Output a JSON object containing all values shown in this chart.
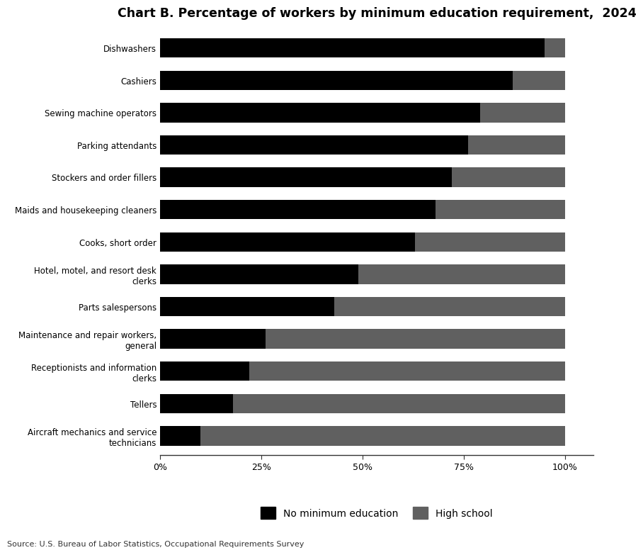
{
  "title": "Chart B. Percentage of workers by minimum education requirement,  2024",
  "categories": [
    "Aircraft mechanics and service\ntechnicians",
    "Tellers",
    "Receptionists and information\nclerks",
    "Maintenance and repair workers,\ngeneral",
    "Parts salespersons",
    "Hotel, motel, and resort desk\nclerks",
    "Cooks, short order",
    "Maids and housekeeping cleaners",
    "Stockers and order fillers",
    "Parking attendants",
    "Sewing machine operators",
    "Cashiers",
    "Dishwashers"
  ],
  "no_min_edu": [
    10,
    18,
    22,
    26,
    43,
    49,
    63,
    68,
    72,
    76,
    79,
    87,
    95
  ],
  "high_school": [
    90,
    82,
    78,
    74,
    57,
    51,
    37,
    32,
    28,
    24,
    21,
    13,
    5
  ],
  "color_no_min": "#000000",
  "color_high_school": "#606060",
  "legend_labels": [
    "No minimum education",
    "High school"
  ],
  "source_text": "Source: U.S. Bureau of Labor Statistics, Occupational Requirements Survey",
  "xlabel_ticks": [
    0,
    25,
    50,
    75,
    100
  ],
  "xlabel_labels": [
    "0%",
    "25%",
    "50%",
    "75%",
    "100%"
  ],
  "background_color": "#ffffff",
  "title_fontsize": 12.5,
  "label_fontsize": 8.5,
  "tick_fontsize": 9,
  "legend_fontsize": 10,
  "source_fontsize": 8,
  "bar_height": 0.6,
  "xlim_max": 107
}
